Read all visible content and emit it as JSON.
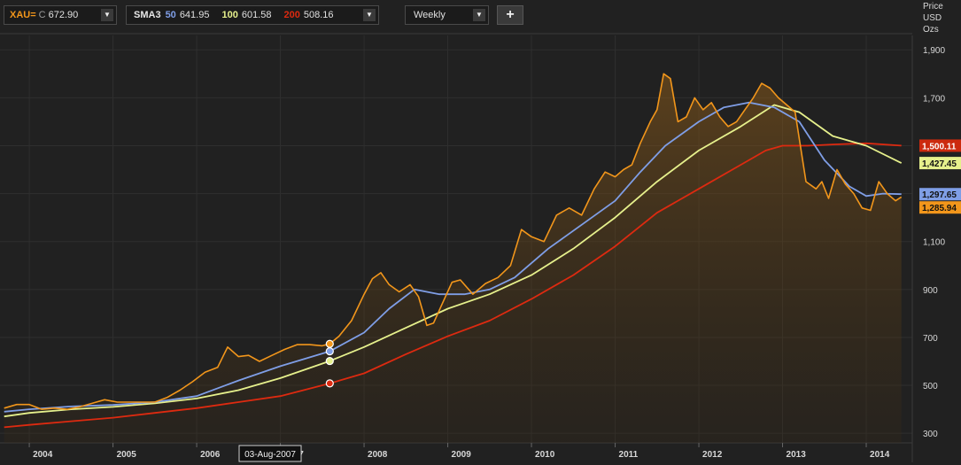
{
  "toolbar": {
    "instrument": {
      "symbol": "XAU=",
      "field": "C",
      "value": "672.90"
    },
    "study": {
      "name": "SMA3",
      "p1": "50",
      "v1": "641.95",
      "p2": "100",
      "v2": "601.58",
      "p3": "200",
      "v3": "508.16"
    },
    "interval": "Weekly",
    "add_label": "+",
    "dropdown_glyph": "▼"
  },
  "cursor_date": "03-Aug-2007",
  "y_axis_title": [
    "Price",
    "USD",
    "Ozs"
  ],
  "colors": {
    "price": "#f2961b",
    "sma50": "#7f9ee6",
    "sma100": "#e6f08c",
    "sma200": "#dd2a10",
    "background": "#212121",
    "grid": "#2f2f2f"
  },
  "chart_data": {
    "type": "line",
    "title": "",
    "xlabel": "",
    "ylabel": "Price USD Ozs",
    "xlim": [
      2003.65,
      2014.55
    ],
    "ylim": [
      260,
      1960
    ],
    "yticks": [
      300,
      500,
      700,
      900,
      1100,
      1300,
      1500,
      1700,
      1900
    ],
    "ytick_labels": [
      "300",
      "500",
      "700",
      "900",
      "1,100",
      "1,300",
      "1,500",
      "1,700",
      "1,900"
    ],
    "xticks": [
      2004,
      2005,
      2006,
      2007,
      2008,
      2009,
      2010,
      2011,
      2012,
      2013,
      2014
    ],
    "xtick_labels": [
      "2004",
      "2005",
      "2006",
      "2007",
      "2008",
      "2009",
      "2010",
      "2011",
      "2012",
      "2013",
      "2014"
    ],
    "grid": true,
    "last_values": {
      "sma200": "1,500.11",
      "sma100": "1,427.45",
      "sma50": "1,297.65",
      "price": "1,285.94"
    },
    "cursor": {
      "x": 2007.59,
      "price": 672.9,
      "sma50": 641.95,
      "sma100": 601.58,
      "sma200": 508.16
    },
    "series": [
      {
        "name": "XAU=",
        "role": "price",
        "x": [
          2003.7,
          2003.85,
          2004.0,
          2004.15,
          2004.3,
          2004.45,
          2004.6,
          2004.75,
          2004.9,
          2005.05,
          2005.2,
          2005.35,
          2005.5,
          2005.65,
          2005.8,
          2005.95,
          2006.1,
          2006.25,
          2006.37,
          2006.5,
          2006.62,
          2006.75,
          2006.9,
          2007.05,
          2007.2,
          2007.35,
          2007.5,
          2007.59,
          2007.7,
          2007.85,
          2008.0,
          2008.1,
          2008.2,
          2008.3,
          2008.42,
          2008.55,
          2008.65,
          2008.75,
          2008.83,
          2008.92,
          2009.05,
          2009.15,
          2009.3,
          2009.45,
          2009.6,
          2009.75,
          2009.88,
          2010.0,
          2010.15,
          2010.3,
          2010.45,
          2010.6,
          2010.75,
          2010.88,
          2011.0,
          2011.1,
          2011.2,
          2011.3,
          2011.42,
          2011.5,
          2011.58,
          2011.66,
          2011.75,
          2011.85,
          2011.95,
          2012.05,
          2012.15,
          2012.25,
          2012.35,
          2012.45,
          2012.55,
          2012.65,
          2012.75,
          2012.85,
          2012.95,
          2013.05,
          2013.15,
          2013.28,
          2013.4,
          2013.47,
          2013.55,
          2013.65,
          2013.75,
          2013.85,
          2013.95,
          2014.05,
          2014.15,
          2014.25,
          2014.35,
          2014.42
        ],
        "values": [
          405,
          420,
          420,
          400,
          405,
          400,
          410,
          425,
          440,
          430,
          430,
          430,
          430,
          450,
          480,
          515,
          555,
          575,
          660,
          620,
          625,
          600,
          625,
          650,
          670,
          670,
          665,
          673,
          705,
          770,
          880,
          945,
          970,
          920,
          890,
          920,
          870,
          750,
          760,
          830,
          930,
          940,
          880,
          925,
          950,
          1000,
          1150,
          1120,
          1100,
          1210,
          1240,
          1210,
          1320,
          1390,
          1370,
          1400,
          1420,
          1510,
          1600,
          1650,
          1800,
          1780,
          1600,
          1620,
          1700,
          1650,
          1680,
          1620,
          1580,
          1600,
          1650,
          1700,
          1760,
          1740,
          1700,
          1670,
          1640,
          1350,
          1320,
          1350,
          1280,
          1400,
          1340,
          1300,
          1240,
          1230,
          1350,
          1300,
          1270,
          1285.94
        ]
      },
      {
        "name": "50",
        "role": "sma50",
        "x": [
          2003.7,
          2004.0,
          2004.5,
          2005.0,
          2005.5,
          2006.0,
          2006.5,
          2007.0,
          2007.59,
          2008.0,
          2008.3,
          2008.6,
          2008.9,
          2009.2,
          2009.5,
          2009.8,
          2010.2,
          2010.6,
          2011.0,
          2011.3,
          2011.6,
          2012.0,
          2012.3,
          2012.6,
          2012.9,
          2013.2,
          2013.5,
          2013.8,
          2014.0,
          2014.2,
          2014.42
        ],
        "values": [
          390,
          400,
          412,
          418,
          430,
          455,
          520,
          580,
          641.95,
          720,
          820,
          900,
          880,
          880,
          900,
          950,
          1070,
          1170,
          1270,
          1390,
          1500,
          1600,
          1660,
          1680,
          1660,
          1600,
          1440,
          1330,
          1290,
          1300,
          1297.65
        ]
      },
      {
        "name": "100",
        "role": "sma100",
        "x": [
          2003.7,
          2004.0,
          2004.5,
          2005.0,
          2005.5,
          2006.0,
          2006.5,
          2007.0,
          2007.59,
          2008.0,
          2008.5,
          2009.0,
          2009.5,
          2010.0,
          2010.5,
          2011.0,
          2011.5,
          2012.0,
          2012.5,
          2012.9,
          2013.2,
          2013.6,
          2014.0,
          2014.42
        ],
        "values": [
          370,
          385,
          400,
          410,
          425,
          445,
          480,
          530,
          601.58,
          660,
          740,
          820,
          880,
          960,
          1070,
          1200,
          1350,
          1480,
          1580,
          1670,
          1640,
          1540,
          1500,
          1427.45
        ]
      },
      {
        "name": "200",
        "role": "sma200",
        "x": [
          2003.7,
          2004.0,
          2004.5,
          2005.0,
          2005.5,
          2006.0,
          2006.5,
          2007.0,
          2007.59,
          2008.0,
          2008.5,
          2009.0,
          2009.5,
          2010.0,
          2010.5,
          2011.0,
          2011.5,
          2012.0,
          2012.5,
          2012.8,
          2013.0,
          2013.3,
          2013.6,
          2014.0,
          2014.42
        ],
        "values": [
          325,
          335,
          350,
          365,
          385,
          405,
          430,
          455,
          508.16,
          550,
          630,
          705,
          770,
          860,
          960,
          1080,
          1220,
          1320,
          1420,
          1480,
          1500,
          1500,
          1505,
          1510,
          1500.11
        ]
      }
    ]
  }
}
